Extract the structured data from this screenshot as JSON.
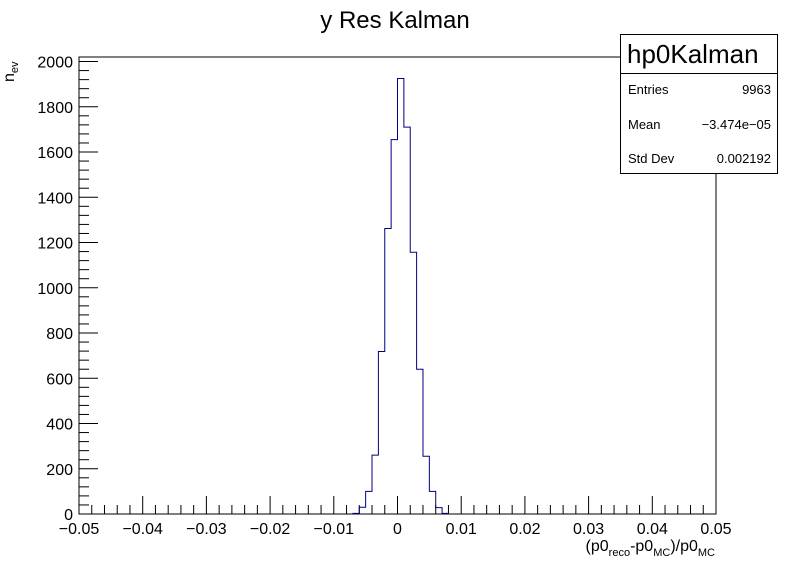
{
  "chart_data": {
    "type": "histogram",
    "title": "y Res Kalman",
    "ylabel_main": "n",
    "ylabel_sub": "ev",
    "xlabel_parts": [
      {
        "t": "(p0",
        "sub": false
      },
      {
        "t": "reco",
        "sub": true
      },
      {
        "t": "-p0",
        "sub": false
      },
      {
        "t": "MC",
        "sub": true
      },
      {
        "t": ")/p0",
        "sub": false
      },
      {
        "t": "MC",
        "sub": true
      }
    ],
    "xlim": [
      -0.05,
      0.05
    ],
    "ylim": [
      0,
      2020
    ],
    "xtick_values": [
      -0.05,
      -0.04,
      -0.03,
      -0.02,
      -0.01,
      0,
      0.01,
      0.02,
      0.03,
      0.04,
      0.05
    ],
    "xtick_labels": [
      "−0.05",
      "−0.04",
      "−0.03",
      "−0.02",
      "−0.01",
      "0",
      "0.01",
      "0.02",
      "0.03",
      "0.04",
      "0.05"
    ],
    "ytick_values": [
      0,
      200,
      400,
      600,
      800,
      1000,
      1200,
      1400,
      1600,
      1800,
      2000
    ],
    "ytick_labels": [
      "0",
      "200",
      "400",
      "600",
      "800",
      "1000",
      "1200",
      "1400",
      "1600",
      "1800",
      "2000"
    ],
    "bin_width": 0.001,
    "bins": [
      {
        "x0": -0.007,
        "y": 3
      },
      {
        "x0": -0.006,
        "y": 30
      },
      {
        "x0": -0.005,
        "y": 100
      },
      {
        "x0": -0.004,
        "y": 260
      },
      {
        "x0": -0.003,
        "y": 718
      },
      {
        "x0": -0.002,
        "y": 1262
      },
      {
        "x0": -0.001,
        "y": 1655
      },
      {
        "x0": 0.0,
        "y": 1925
      },
      {
        "x0": 0.001,
        "y": 1710
      },
      {
        "x0": 0.002,
        "y": 1157
      },
      {
        "x0": 0.003,
        "y": 640
      },
      {
        "x0": 0.004,
        "y": 255
      },
      {
        "x0": 0.005,
        "y": 100
      },
      {
        "x0": 0.006,
        "y": 28
      },
      {
        "x0": 0.007,
        "y": 3
      }
    ],
    "line_color": "#000080"
  },
  "stats": {
    "name": "hp0Kalman",
    "entries_label": "Entries",
    "entries_value": "9963",
    "mean_label": "Mean",
    "mean_value": "−3.474e−05",
    "stddev_label": "Std Dev",
    "stddev_value": "0.002192"
  }
}
